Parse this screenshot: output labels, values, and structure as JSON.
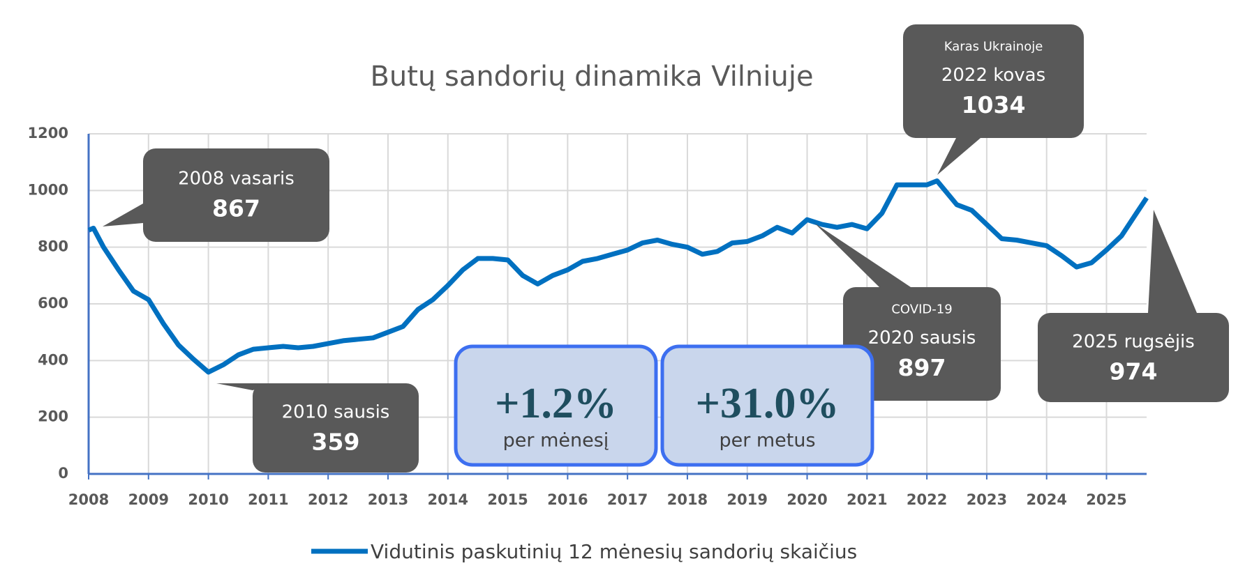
{
  "chart_data": {
    "type": "line",
    "title": "Butų sandorių dinamika Vilniuje",
    "x": [
      2008,
      2008.08,
      2008.25,
      2008.5,
      2008.75,
      2009,
      2009.25,
      2009.5,
      2009.75,
      2010,
      2010.25,
      2010.5,
      2010.75,
      2011,
      2011.25,
      2011.5,
      2011.75,
      2012,
      2012.25,
      2012.5,
      2012.75,
      2013,
      2013.25,
      2013.5,
      2013.75,
      2014,
      2014.25,
      2014.5,
      2014.75,
      2015,
      2015.25,
      2015.5,
      2015.75,
      2016,
      2016.25,
      2016.5,
      2016.75,
      2017,
      2017.25,
      2017.5,
      2017.75,
      2018,
      2018.25,
      2018.5,
      2018.75,
      2019,
      2019.25,
      2019.5,
      2019.75,
      2020,
      2020.25,
      2020.5,
      2020.75,
      2021,
      2021.25,
      2021.5,
      2021.75,
      2022,
      2022.17,
      2022.5,
      2022.75,
      2023,
      2023.25,
      2023.5,
      2023.75,
      2024,
      2024.25,
      2024.5,
      2024.75,
      2025,
      2025.25,
      2025.5,
      2025.67
    ],
    "series": [
      {
        "name": "Vidutinis paskutinių 12 mėnesių sandorių skaičius",
        "color": "#0070c0",
        "values": [
          860,
          867,
          800,
          720,
          645,
          615,
          530,
          455,
          405,
          359,
          385,
          420,
          440,
          445,
          450,
          445,
          450,
          460,
          470,
          475,
          480,
          500,
          520,
          580,
          615,
          665,
          720,
          760,
          760,
          755,
          700,
          670,
          700,
          720,
          750,
          760,
          775,
          790,
          815,
          825,
          810,
          800,
          775,
          785,
          815,
          820,
          840,
          870,
          850,
          897,
          880,
          870,
          880,
          865,
          920,
          1020,
          1020,
          1020,
          1034,
          950,
          930,
          880,
          830,
          825,
          815,
          805,
          770,
          730,
          745,
          790,
          840,
          920,
          974
        ]
      }
    ],
    "xlim": [
      2008,
      2025.67
    ],
    "xticks": [
      2008,
      2009,
      2010,
      2011,
      2012,
      2013,
      2014,
      2015,
      2016,
      2017,
      2018,
      2019,
      2020,
      2021,
      2022,
      2023,
      2024,
      2025
    ],
    "ylim": [
      0,
      1200
    ],
    "yticks": [
      0,
      200,
      400,
      600,
      800,
      1000,
      1200
    ],
    "grid": true,
    "annotations": [
      {
        "date": "2008 vasaris",
        "value": 867
      },
      {
        "date": "2010 sausis",
        "value": 359
      },
      {
        "note": "Karas Ukrainoje",
        "date": "2022 kovas",
        "value": 1034
      },
      {
        "note": "COVID-19",
        "date": "2020 sausis",
        "value": 897
      },
      {
        "date": "2025 rugsėjis",
        "value": 974
      }
    ],
    "summary": [
      {
        "change": "+1.2%",
        "period": "per mėnesį"
      },
      {
        "change": "+31.0%",
        "period": "per metus"
      }
    ]
  }
}
